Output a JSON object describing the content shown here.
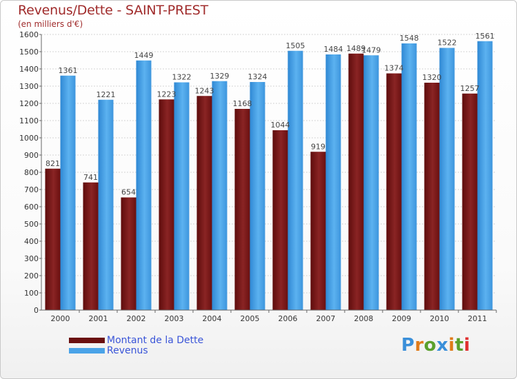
{
  "header": {
    "title": "Revenus/Dette - SAINT-PREST",
    "subtitle": "(en milliers d'€)"
  },
  "brand": {
    "name": "Proxiti"
  },
  "chart_data": {
    "type": "bar",
    "categories": [
      "2000",
      "2001",
      "2002",
      "2003",
      "2004",
      "2005",
      "2006",
      "2007",
      "2008",
      "2009",
      "2010",
      "2011"
    ],
    "series": [
      {
        "name": "Montant de la Dette",
        "color": "#7a1616",
        "values": [
          821,
          741,
          654,
          1223,
          1243,
          1168,
          1044,
          919,
          1489,
          1374,
          1320,
          1257
        ]
      },
      {
        "name": "Revenus",
        "color": "#4aa3e8",
        "values": [
          1361,
          1221,
          1449,
          1322,
          1329,
          1324,
          1505,
          1484,
          1479,
          1548,
          1522,
          1561
        ]
      }
    ],
    "yticks": [
      0,
      100,
      200,
      300,
      400,
      500,
      600,
      700,
      800,
      900,
      1000,
      1100,
      1200,
      1300,
      1400,
      1500,
      1600
    ],
    "ylim": [
      0,
      1600
    ],
    "grid": true,
    "legend_position": "bottom-left"
  }
}
